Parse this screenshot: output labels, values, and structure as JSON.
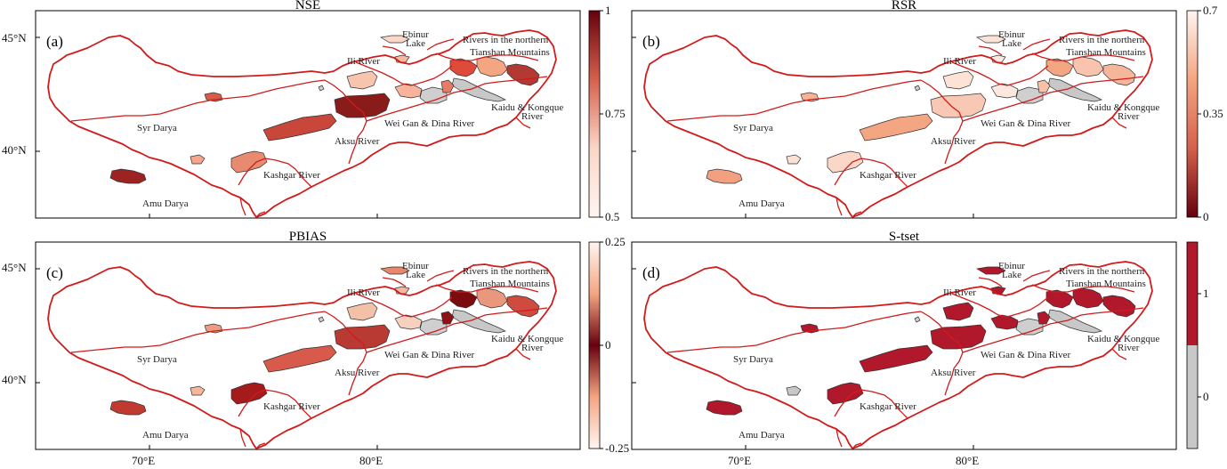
{
  "panels": [
    {
      "title": "NSE",
      "label": "(a)",
      "colorbar": {
        "ticks": [
          "1",
          "0.75",
          "0.5"
        ],
        "colors": [
          "#67000d",
          "#d6604d",
          "#fbd7c7",
          "#fff5f0"
        ]
      },
      "fills": [
        "#8a1b1b",
        "#c9463a",
        "#e78a70",
        "#f7c4ae",
        "#fbd7c7",
        "#e04a3a",
        "#f4a582",
        "#c8c8c8",
        "#b33a32",
        "#f7b39b",
        "#cfcfcf",
        "#e87b65",
        "#9d2323",
        "#f6a48a",
        "#d85a4b",
        "#cfcfcf",
        "#f5b8a0"
      ]
    },
    {
      "title": "RSR",
      "label": "(b)",
      "colorbar": {
        "ticks": [
          "0.7",
          "0.35",
          "0"
        ],
        "colors": [
          "#fff5f0",
          "#f4a582",
          "#d6604d",
          "#67000d"
        ]
      },
      "fills": [
        "#f9c8b4",
        "#f4a582",
        "#fbd7c7",
        "#fde2d6",
        "#fbe3d8",
        "#f4a582",
        "#f9c3ad",
        "#c8c8c8",
        "#f6b69c",
        "#fde8df",
        "#cfcfcf",
        "#f8c0a8",
        "#f3a080",
        "#fbe0d5",
        "#f6b196",
        "#cfcfcf",
        "#fde7de"
      ]
    },
    {
      "title": "PBIAS",
      "label": "(c)",
      "colorbar": {
        "ticks": [
          "0.25",
          "0",
          "-0.25"
        ],
        "colors": [
          "#fff5f0",
          "#f4a582",
          "#67000d",
          "#f4a582",
          "#fff5f0"
        ]
      },
      "fills": [
        "#b83a32",
        "#d85a4b",
        "#a51a1a",
        "#f3c0a8",
        "#e7866c",
        "#7a0c10",
        "#e9977d",
        "#c8c8c8",
        "#cf4b3f",
        "#f8d0bf",
        "#cfcfcf",
        "#8e1116",
        "#c13a30",
        "#f6b69c",
        "#ef9a82",
        "#cfcfcf",
        "#f2b7a0"
      ]
    },
    {
      "title": "S-tset",
      "label": "(d)",
      "colorbar": {
        "ticks": [
          "1",
          "0"
        ],
        "colors": [
          "#b2182b",
          "#c8c8c8"
        ]
      },
      "fills": [
        "#b2182b",
        "#b2182b",
        "#b2182b",
        "#b2182b",
        "#b2182b",
        "#b2182b",
        "#b2182b",
        "#c8c8c8",
        "#b2182b",
        "#b2182b",
        "#cfcfcf",
        "#b2182b",
        "#b2182b",
        "#c8c8c8",
        "#b2182b",
        "#cfcfcf",
        "#b2182b"
      ]
    }
  ],
  "region_labels": [
    {
      "id": "syr",
      "text": "Syr Darya"
    },
    {
      "id": "amu",
      "text": "Amu Darya"
    },
    {
      "id": "ili",
      "text": "Ili River"
    },
    {
      "id": "ebinur1",
      "text": "Ebinur"
    },
    {
      "id": "ebinur2",
      "text": "Lake"
    },
    {
      "id": "north1",
      "text": "Rivers in the northern"
    },
    {
      "id": "north2",
      "text": "Tianshan Mountains"
    },
    {
      "id": "kaidu1",
      "text": "Kaidu & Kongque"
    },
    {
      "id": "kaidu2",
      "text": "River"
    },
    {
      "id": "weigan",
      "text": "Wei Gan & Dina River"
    },
    {
      "id": "aksu",
      "text": "Aksu River"
    },
    {
      "id": "kashgar",
      "text": "Kashgar River"
    }
  ],
  "axes": {
    "lat_labels": [
      "45°N",
      "40°N"
    ],
    "lon_labels": [
      "70°E",
      "80°E"
    ]
  },
  "colors": {
    "boundary": "#d11b1b",
    "frame": "#000000"
  }
}
